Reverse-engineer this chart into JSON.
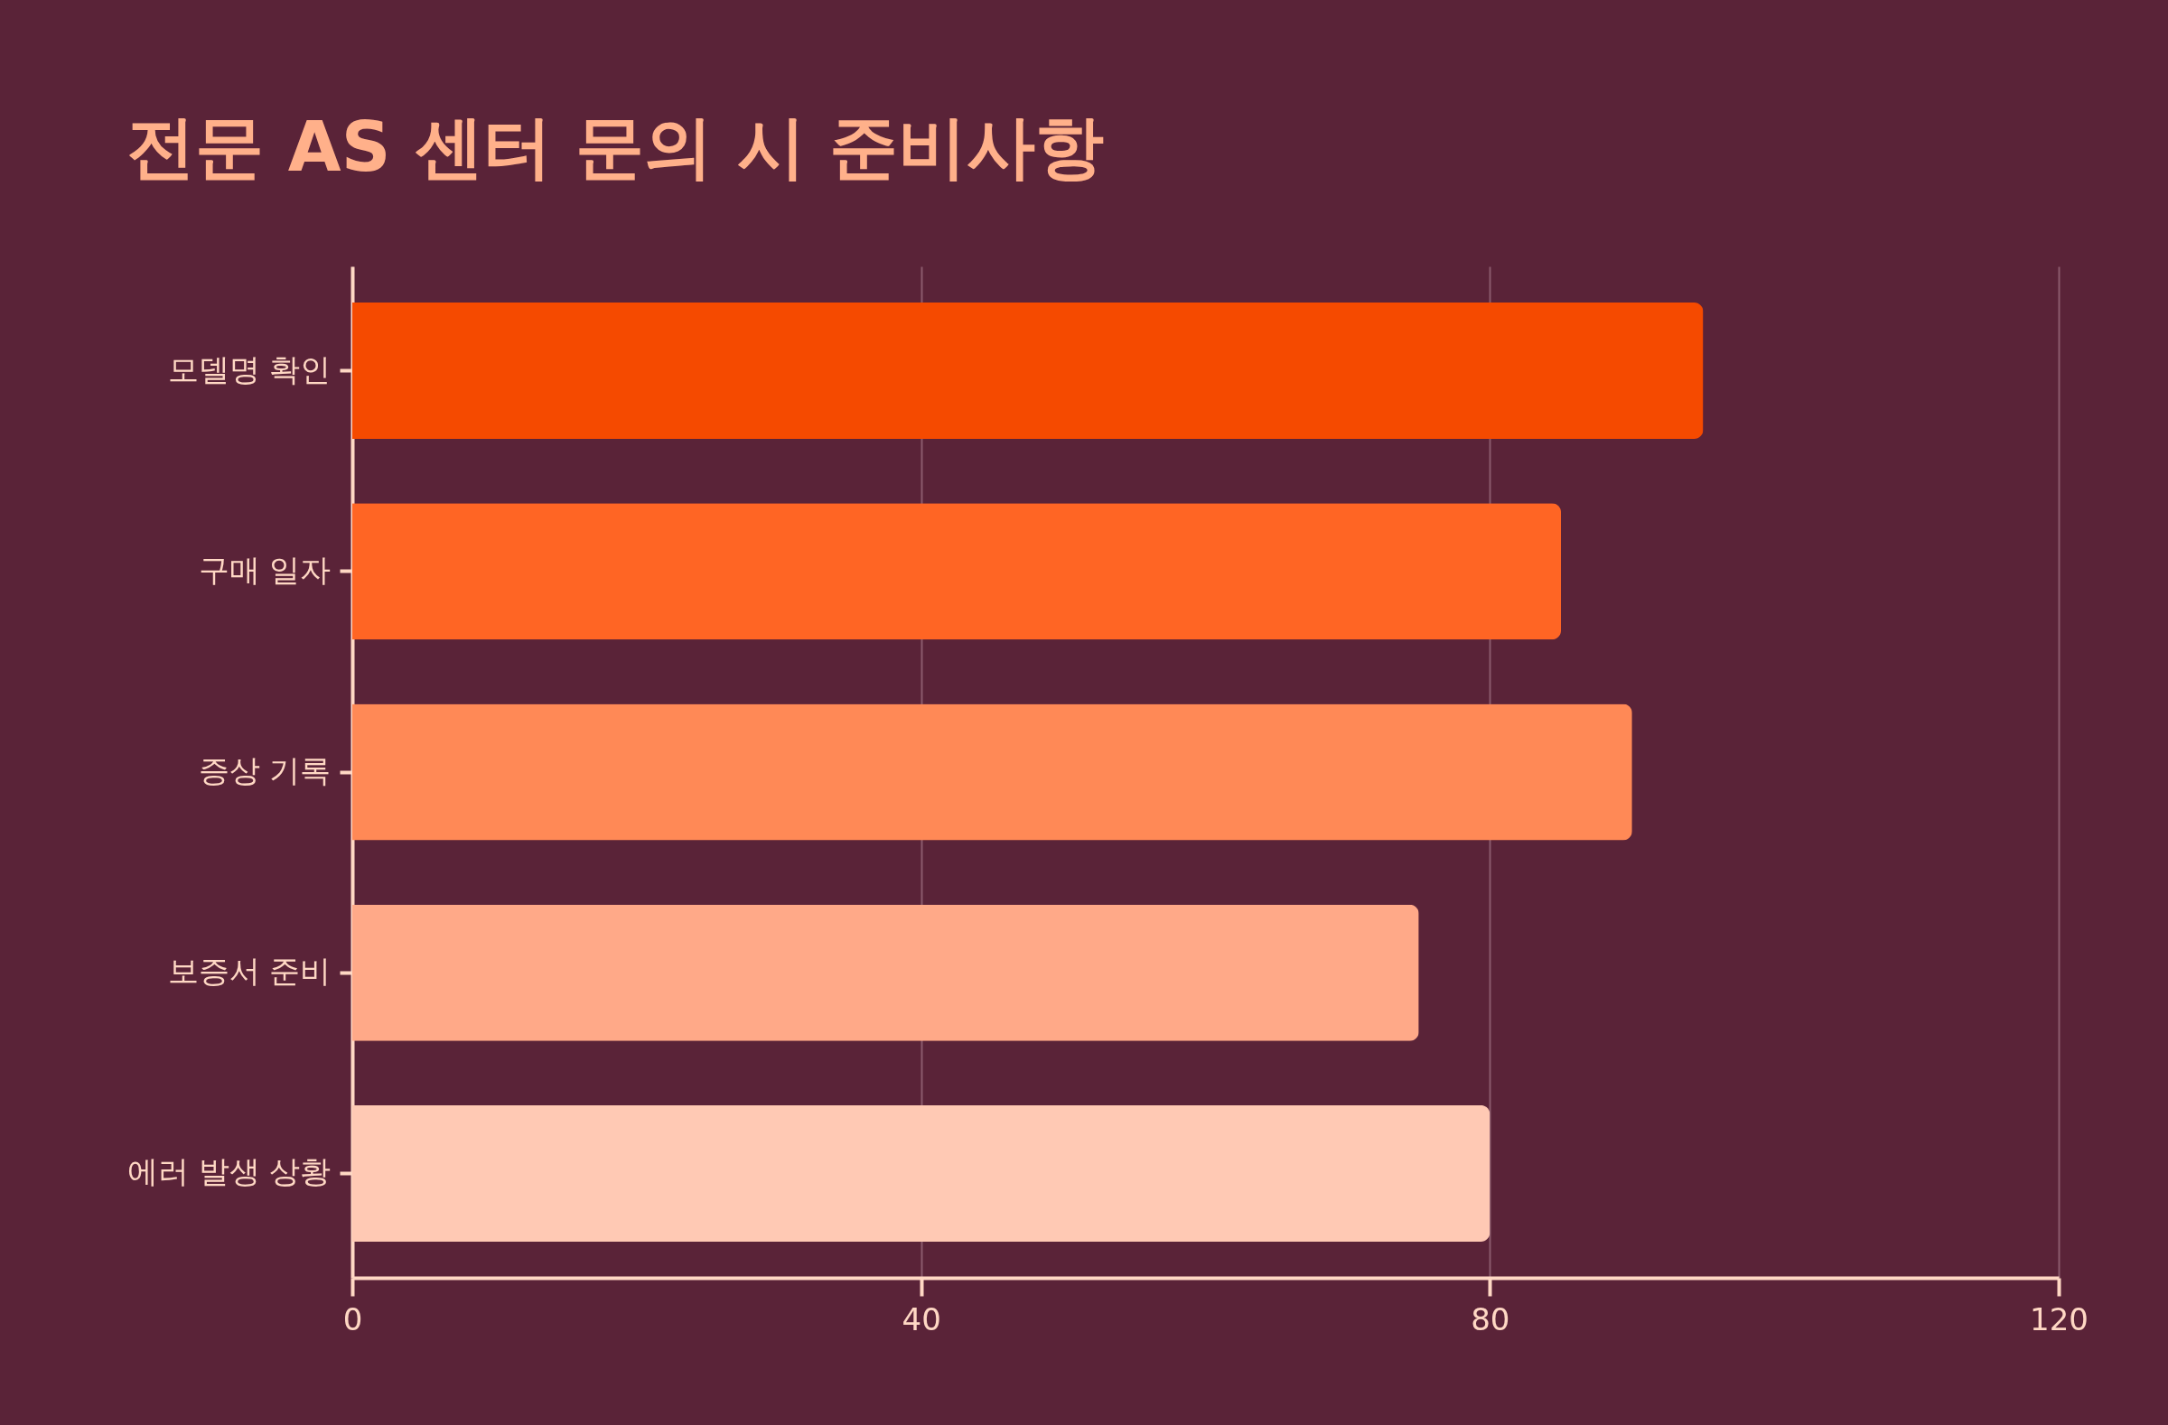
{
  "chart_data": {
    "type": "bar",
    "orientation": "horizontal",
    "title": "전문 AS 센터 문의 시 준비사항",
    "categories": [
      "모델명 확인",
      "구매 일자",
      "증상 기록",
      "보증서 준비",
      "에러 발생 상황"
    ],
    "values": [
      95,
      85,
      90,
      75,
      80
    ],
    "colors": [
      "#f54a00",
      "#ff6524",
      "#ff8956",
      "#ffa988",
      "#ffc9b4"
    ],
    "xlim": [
      0,
      120
    ],
    "xticks": [
      0,
      40,
      80,
      120
    ],
    "grid": "x",
    "legend": false
  }
}
